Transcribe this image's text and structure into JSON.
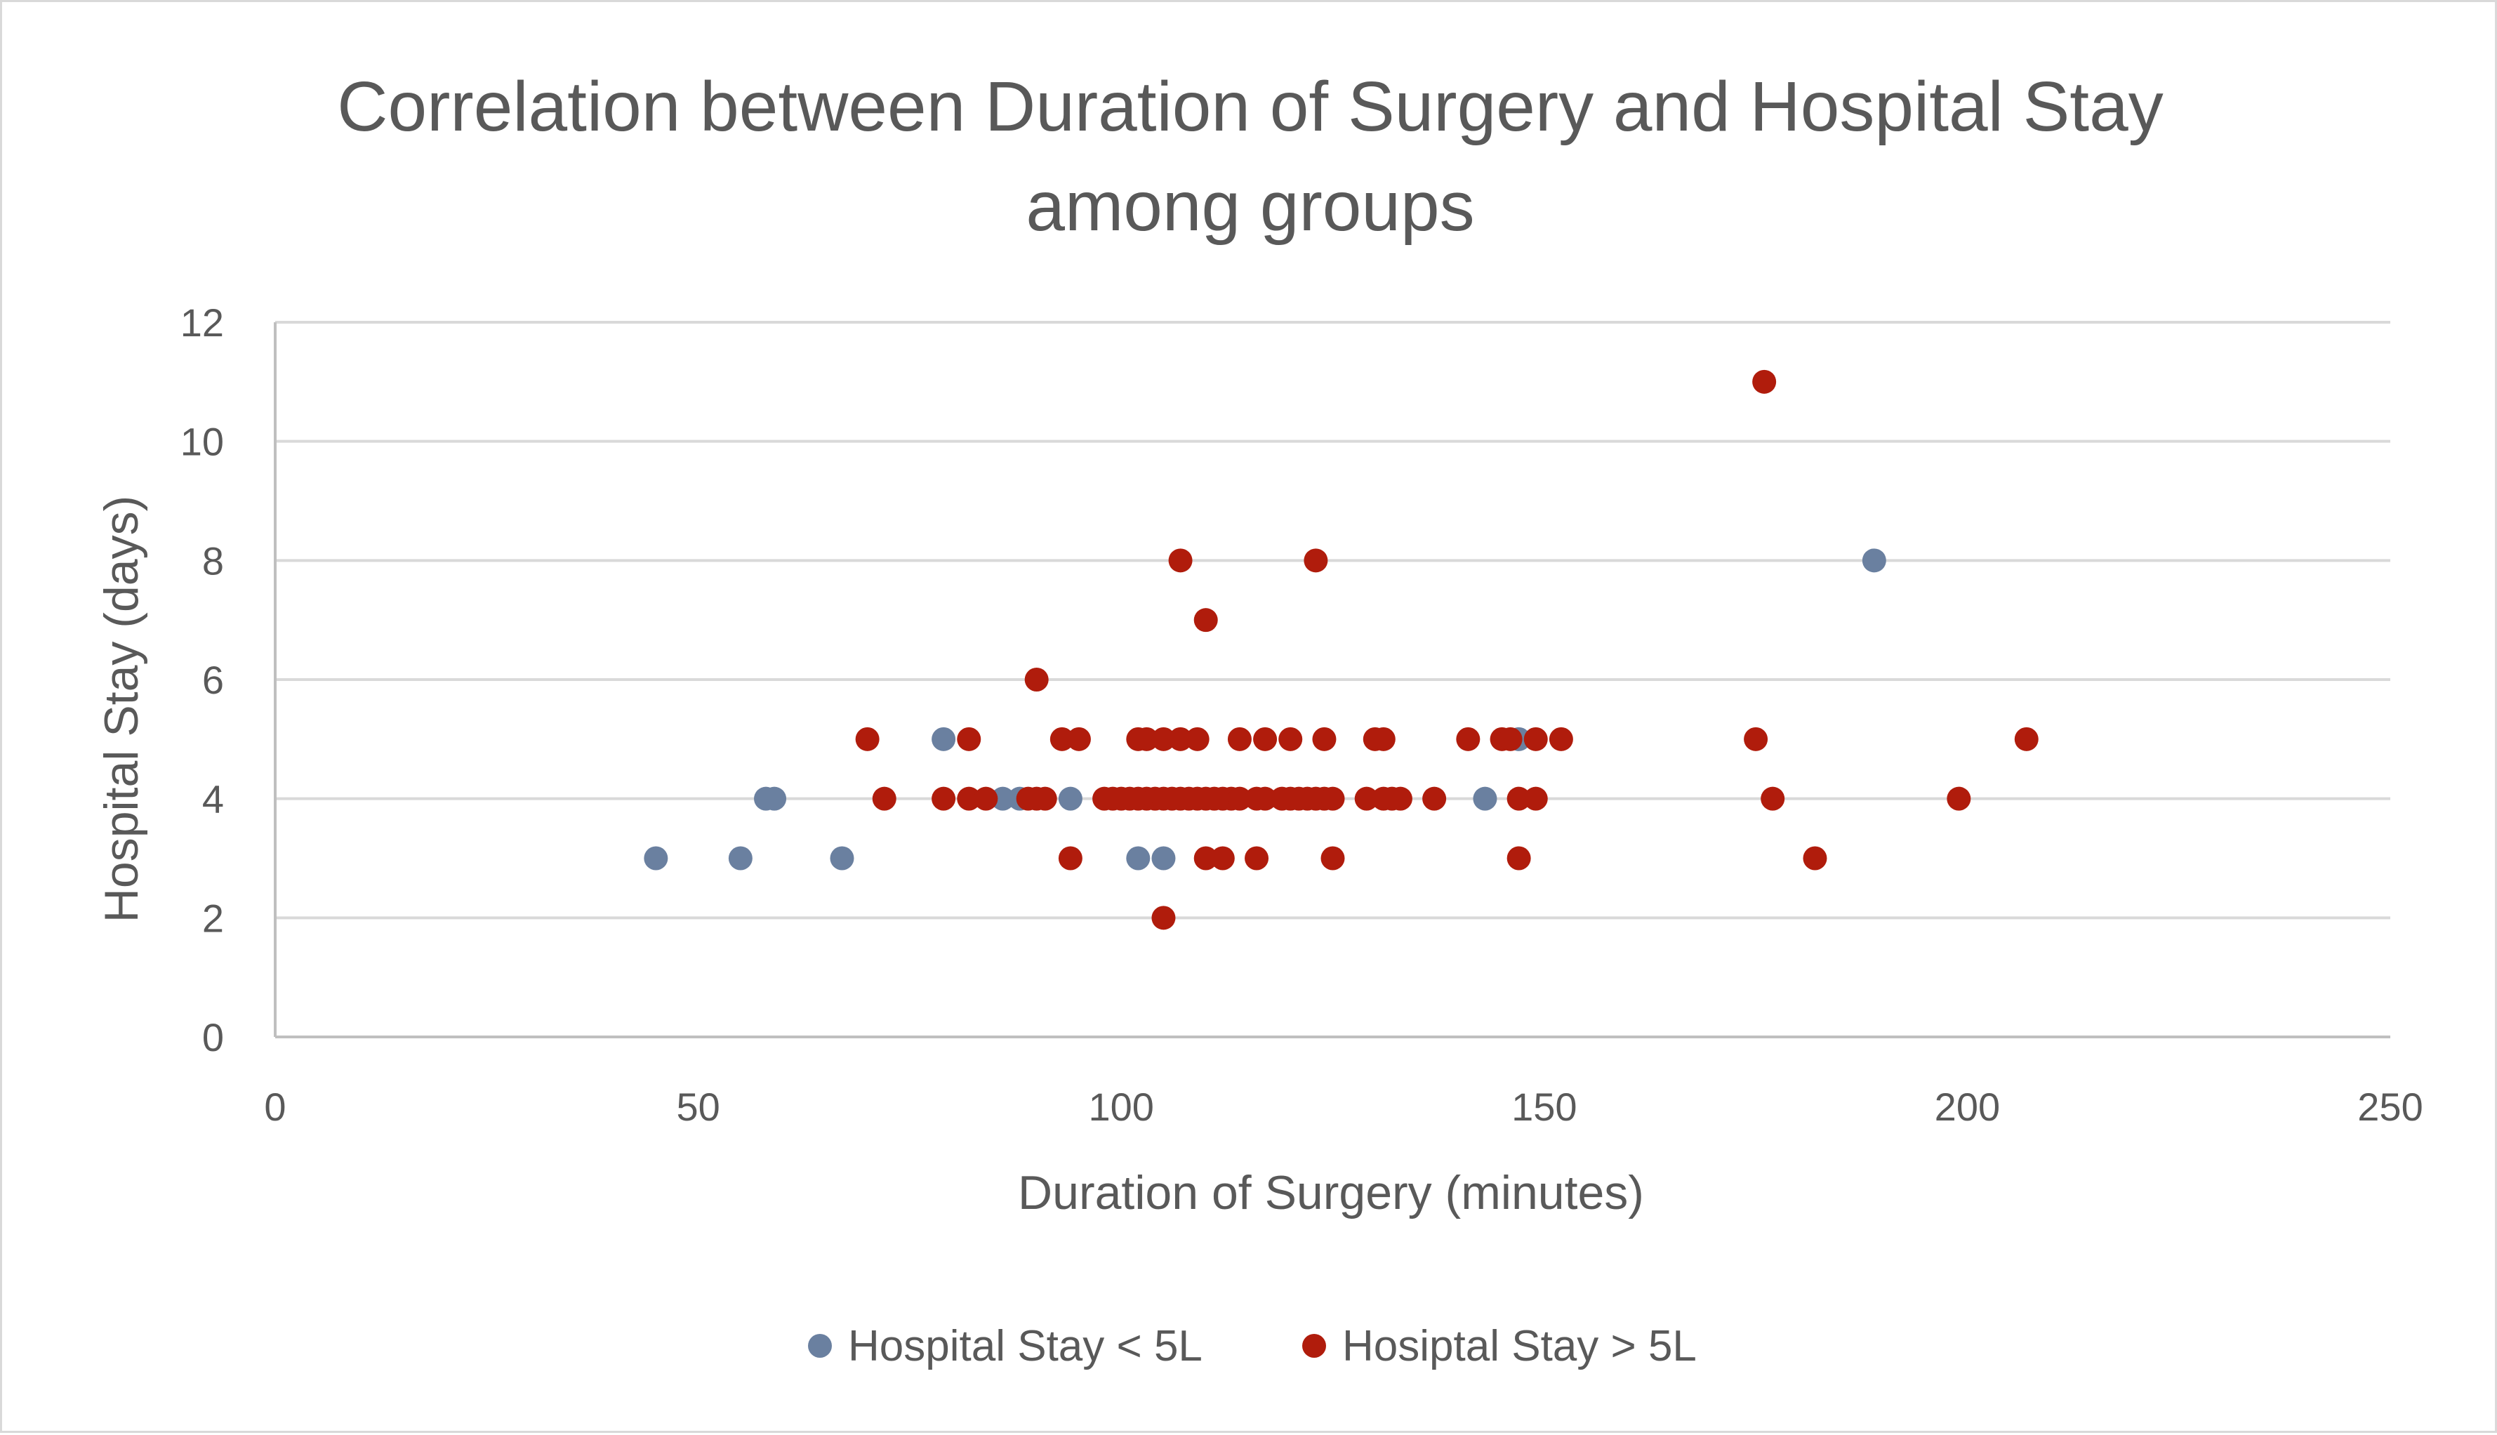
{
  "chart_data": {
    "type": "scatter",
    "title_lines": [
      "Correlation between Duration of Surgery and Hospital Stay",
      "among groups"
    ],
    "xlabel": "Duration of Surgery (minutes)",
    "ylabel": "Hospital Stay (days)",
    "xlim": [
      0,
      250
    ],
    "ylim": [
      0,
      12
    ],
    "xticks": [
      0,
      50,
      100,
      150,
      200,
      250
    ],
    "yticks": [
      0,
      2,
      4,
      6,
      8,
      10,
      12
    ],
    "grid": "horizontal",
    "legend_position": "bottom",
    "series": [
      {
        "name": "Hospital Stay < 5L",
        "color": "#6a80a0",
        "points": [
          [
            45,
            3
          ],
          [
            55,
            3
          ],
          [
            58,
            4
          ],
          [
            59,
            4
          ],
          [
            67,
            3
          ],
          [
            79,
            5
          ],
          [
            86,
            4
          ],
          [
            88,
            4
          ],
          [
            94,
            4
          ],
          [
            102,
            3
          ],
          [
            105,
            3
          ],
          [
            143,
            4
          ],
          [
            147,
            5
          ],
          [
            189,
            8
          ]
        ]
      },
      {
        "name": "Hosiptal Stay > 5L",
        "color": "#b01c0c",
        "points": [
          [
            70,
            5
          ],
          [
            72,
            4
          ],
          [
            79,
            4
          ],
          [
            82,
            5
          ],
          [
            82,
            4
          ],
          [
            84,
            4
          ],
          [
            89,
            4
          ],
          [
            90,
            6
          ],
          [
            90,
            4
          ],
          [
            91,
            4
          ],
          [
            93,
            5
          ],
          [
            95,
            5
          ],
          [
            94,
            3
          ],
          [
            98,
            4
          ],
          [
            99,
            4
          ],
          [
            100,
            4
          ],
          [
            101,
            4
          ],
          [
            102,
            5
          ],
          [
            102,
            4
          ],
          [
            103,
            5
          ],
          [
            103,
            4
          ],
          [
            104,
            4
          ],
          [
            105,
            5
          ],
          [
            105,
            4
          ],
          [
            105,
            2
          ],
          [
            106,
            4
          ],
          [
            107,
            8
          ],
          [
            107,
            5
          ],
          [
            107,
            4
          ],
          [
            108,
            4
          ],
          [
            109,
            5
          ],
          [
            109,
            4
          ],
          [
            110,
            7
          ],
          [
            110,
            4
          ],
          [
            110,
            3
          ],
          [
            111,
            4
          ],
          [
            112,
            4
          ],
          [
            112,
            3
          ],
          [
            113,
            4
          ],
          [
            114,
            5
          ],
          [
            114,
            4
          ],
          [
            116,
            4
          ],
          [
            116,
            3
          ],
          [
            117,
            5
          ],
          [
            117,
            4
          ],
          [
            119,
            4
          ],
          [
            120,
            4
          ],
          [
            120,
            5
          ],
          [
            121,
            4
          ],
          [
            122,
            4
          ],
          [
            123,
            8
          ],
          [
            123,
            4
          ],
          [
            124,
            5
          ],
          [
            124,
            4
          ],
          [
            125,
            4
          ],
          [
            125,
            3
          ],
          [
            129,
            4
          ],
          [
            130,
            5
          ],
          [
            131,
            5
          ],
          [
            131,
            4
          ],
          [
            132,
            4
          ],
          [
            133,
            4
          ],
          [
            137,
            4
          ],
          [
            141,
            5
          ],
          [
            145,
            5
          ],
          [
            146,
            5
          ],
          [
            147,
            4
          ],
          [
            147,
            3
          ],
          [
            149,
            5
          ],
          [
            149,
            4
          ],
          [
            152,
            5
          ],
          [
            175,
            5
          ],
          [
            176,
            11
          ],
          [
            177,
            4
          ],
          [
            182,
            3
          ],
          [
            199,
            4
          ],
          [
            207,
            5
          ]
        ]
      }
    ]
  }
}
